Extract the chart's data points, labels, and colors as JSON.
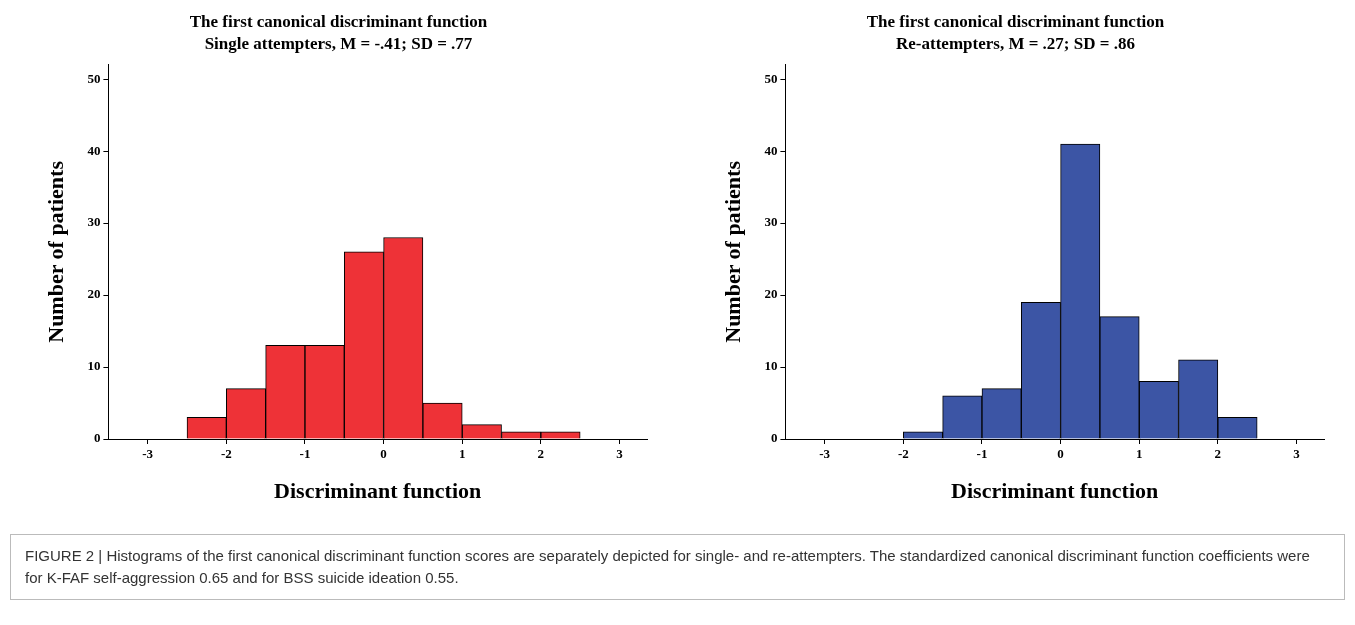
{
  "chart_data": [
    {
      "type": "histogram",
      "title": "The first canonical discriminant function",
      "subtitle": "Single attempters, M = -.41; SD = .77",
      "xlabel": "Discriminant function",
      "ylabel": "Number of patients",
      "bins": [
        -2.5,
        -2,
        -1.5,
        -1,
        -0.5,
        0,
        0.5,
        1,
        1.5,
        2,
        2.5
      ],
      "values": [
        3,
        7,
        13,
        13,
        26,
        28,
        5,
        2,
        1,
        1
      ],
      "color": "#ee3237",
      "xlim": [
        -3.5,
        3.35
      ],
      "xticks": [
        -3,
        -2,
        -1,
        0,
        1,
        2,
        3
      ],
      "ylim": [
        0,
        52
      ],
      "yticks": [
        0,
        10,
        20,
        30,
        40,
        50
      ],
      "grid": false,
      "annotations": [
        "FIGURE 2 | Histograms of the first canonical discriminant function scores are separately depicted for single- and re-attempters. The standardized canonical discriminant function coefficients were for K-FAF self-aggression 0.65 and for BSS suicide ideation 0.55."
      ]
    },
    {
      "type": "histogram",
      "title": "The first canonical discriminant function",
      "subtitle": "Re-attempters, M = .27; SD = .86",
      "xlabel": "Discriminant function",
      "ylabel": "Number of patients",
      "bins": [
        -2,
        -1.5,
        -1,
        -0.5,
        0,
        0.5,
        1,
        1.5,
        2,
        2.5
      ],
      "values": [
        1,
        6,
        7,
        19,
        41,
        17,
        8,
        11,
        3
      ],
      "color": "#3c55a5",
      "xlim": [
        -3.5,
        3.35
      ],
      "xticks": [
        -3,
        -2,
        -1,
        0,
        1,
        2,
        3
      ],
      "ylim": [
        0,
        52
      ],
      "yticks": [
        0,
        10,
        20,
        30,
        40,
        50
      ],
      "grid": false
    }
  ]
}
